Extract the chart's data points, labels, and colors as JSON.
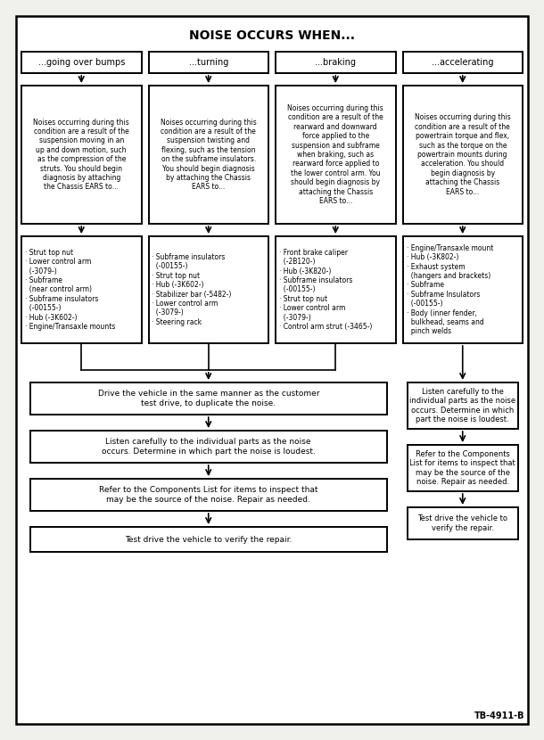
{
  "title": "NOISE OCCURS WHEN...",
  "bg_color": "#f0f0ec",
  "box_color": "#ffffff",
  "border_color": "#000000",
  "text_color": "#000000",
  "columns": [
    {
      "header": "...going over bumps",
      "description": "Noises occurring during this\ncondition are a result of the\nsuspension moving in an\nup and down motion, such\nas the compression of the\nstruts. You should begin\ndiagnosis by attaching\nthe Chassis EARS to...",
      "items": "· Strut top nut\n· Lower control arm\n  (-3079-)\n· Subframe\n  (near control arm)\n· Subframe insulators\n  (-00155-)\n· Hub (-3K602-)\n· Engine/Transaxle mounts"
    },
    {
      "header": "...turning",
      "description": "Noises occurring during this\ncondition are a result of the\nsuspension twisting and\nflexing, such as the tension\non the subframe insulators.\nYou should begin diagnosis\nby attaching the Chassis\nEARS to...",
      "items": "· Subframe insulators\n  (-00155-)\n· Strut top nut\n· Hub (-3K602-)\n· Stabilizer bar (-5482-)\n· Lower control arm\n  (-3079-)\n· Steering rack"
    },
    {
      "header": "...braking",
      "description": "Noises occurring during this\ncondition are a result of the\nrearward and downward\nforce applied to the\nsuspension and subframe\nwhen braking, such as\nrearward force applied to\nthe lower control arm. You\nshould begin diagnosis by\nattaching the Chassis\nEARS to...",
      "items": "· Front brake caliper\n  (-2B120-)\n· Hub (-3K820-)\n· Subframe insulators\n  (-00155-)\n· Strut top nut\n· Lower control arm\n  (-3079-)\n· Control arm strut (-3465-)"
    },
    {
      "header": "...accelerating",
      "description": "Noises occurring during this\ncondition are a result of the\npowertrain torque and flex,\nsuch as the torque on the\npowertrain mounts during\nacceleration. You should\nbegin diagnosis by\nattaching the Chassis\nEARS to...",
      "items": "· Engine/Transaxle mount\n· Hub (-3K802-)\n· Exhaust system\n  (hangers and brackets)\n· Subframe\n· Subframe Insulators\n  (-00155-)\n· Body (inner fender,\n  bulkhead, seams and\n  pinch welds"
    }
  ],
  "left_flow": [
    "Drive the vehicle in the same manner as the customer\ntest drive, to duplicate the noise.",
    "Listen carefully to the individual parts as the noise\noccurs. Determine in which part the noise is loudest.",
    "Refer to the Components List for items to inspect that\nmay be the source of the noise. Repair as needed.",
    "Test drive the vehicle to verify the repair."
  ],
  "right_flow": [
    "Listen carefully to the\nindividual parts as the noise\noccurs. Determine in which\npart the noise is loudest.",
    "Refer to the Components\nList for items to inspect that\nmay be the source of the\nnoise. Repair as needed.",
    "Test drive the vehicle to\nverify the repair."
  ],
  "footnote": "TB-4911-B"
}
